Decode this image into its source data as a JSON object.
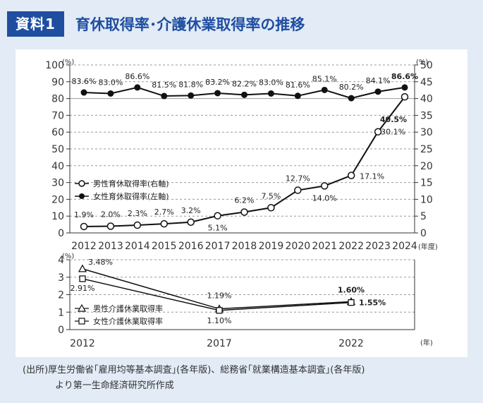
{
  "header": {
    "badge": "資料1",
    "title": "育休取得率･介護休業取得率の推移"
  },
  "chart_data": [
    {
      "type": "line",
      "categories": [
        "2012",
        "2013",
        "2014",
        "2015",
        "2016",
        "2017",
        "2018",
        "2019",
        "2020",
        "2021",
        "2022",
        "2023",
        "2024"
      ],
      "left_axis": {
        "ticks": [
          "0",
          "10",
          "20",
          "30",
          "40",
          "50",
          "60",
          "70",
          "80",
          "90",
          "100"
        ],
        "unit": "(%)",
        "ylim": [
          0,
          100
        ]
      },
      "right_axis": {
        "ticks": [
          "0",
          "5",
          "10",
          "15",
          "20",
          "25",
          "30",
          "35",
          "40",
          "45",
          "50"
        ],
        "unit": "(%)",
        "ylim": [
          0,
          50
        ]
      },
      "x_unit": "(年度)",
      "series": [
        {
          "name": "女性育休取得率(左軸)",
          "axis": "left",
          "marker": "filled-circle",
          "values": [
            83.6,
            83.0,
            86.6,
            81.5,
            81.8,
            83.2,
            82.2,
            83.0,
            81.6,
            85.1,
            80.2,
            84.1,
            86.6
          ],
          "labels": [
            "83.6%",
            "83.0%",
            "86.6%",
            "81.5%",
            "81.8%",
            "83.2%",
            "82.2%",
            "83.0%",
            "81.6%",
            "85.1%",
            "80.2%",
            "84.1%",
            "86.6%"
          ]
        },
        {
          "name": "男性育休取得率(右軸)",
          "axis": "right",
          "marker": "open-circle",
          "values": [
            1.9,
            2.0,
            2.3,
            2.7,
            3.2,
            5.1,
            6.2,
            7.5,
            12.7,
            14.0,
            17.1,
            30.1,
            40.5
          ],
          "labels": [
            "1.9%",
            "2.0%",
            "2.3%",
            "2.7%",
            "3.2%",
            "5.1%",
            "6.2%",
            "7.5%",
            "12.7%",
            "14.0%",
            "17.1%",
            "30.1%",
            "40.5%"
          ]
        }
      ]
    },
    {
      "type": "line",
      "categories": [
        "2012",
        "2017",
        "2022"
      ],
      "axis": {
        "ticks": [
          "0",
          "1",
          "2",
          "3",
          "4"
        ],
        "unit": "(%)",
        "ylim": [
          0,
          4
        ]
      },
      "x_unit": "(年)",
      "series": [
        {
          "name": "男性介護休業取得率",
          "marker": "open-triangle",
          "values": [
            3.48,
            1.19,
            1.6
          ],
          "labels": [
            "3.48%",
            "1.19%",
            "1.60%"
          ]
        },
        {
          "name": "女性介護休業取得率",
          "marker": "open-square",
          "values": [
            2.91,
            1.1,
            1.55
          ],
          "labels": [
            "2.91%",
            "1.10%",
            "1.55%"
          ]
        }
      ]
    }
  ],
  "source": {
    "line1": "(出所)厚生労働省｢雇用均等基本調査｣(各年版)、総務省｢就業構造基本調査｣(各年版)",
    "line2": "より第一生命経済研究所作成"
  }
}
